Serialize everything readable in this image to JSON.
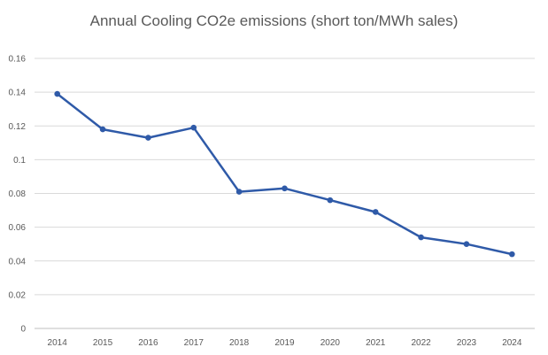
{
  "chart_data": {
    "type": "line",
    "title": "Annual Cooling CO2e emissions (short ton/MWh sales)",
    "xlabel": "",
    "ylabel": "",
    "categories": [
      "2014",
      "2015",
      "2016",
      "2017",
      "2018",
      "2019",
      "2020",
      "2021",
      "2022",
      "2023",
      "2024"
    ],
    "series": [
      {
        "values": [
          0.139,
          0.118,
          0.113,
          0.119,
          0.081,
          0.083,
          0.076,
          0.069,
          0.054,
          0.05,
          0.044
        ]
      }
    ],
    "ylim": [
      0,
      0.16
    ],
    "yticks": [
      "0",
      "0.02",
      "0.04",
      "0.06",
      "0.08",
      "0.1",
      "0.12",
      "0.14",
      "0.16"
    ],
    "grid": true,
    "legend": "none",
    "colors": {
      "line": "#2f5aa8",
      "grid": "#d9d9d9",
      "text": "#595959"
    }
  }
}
